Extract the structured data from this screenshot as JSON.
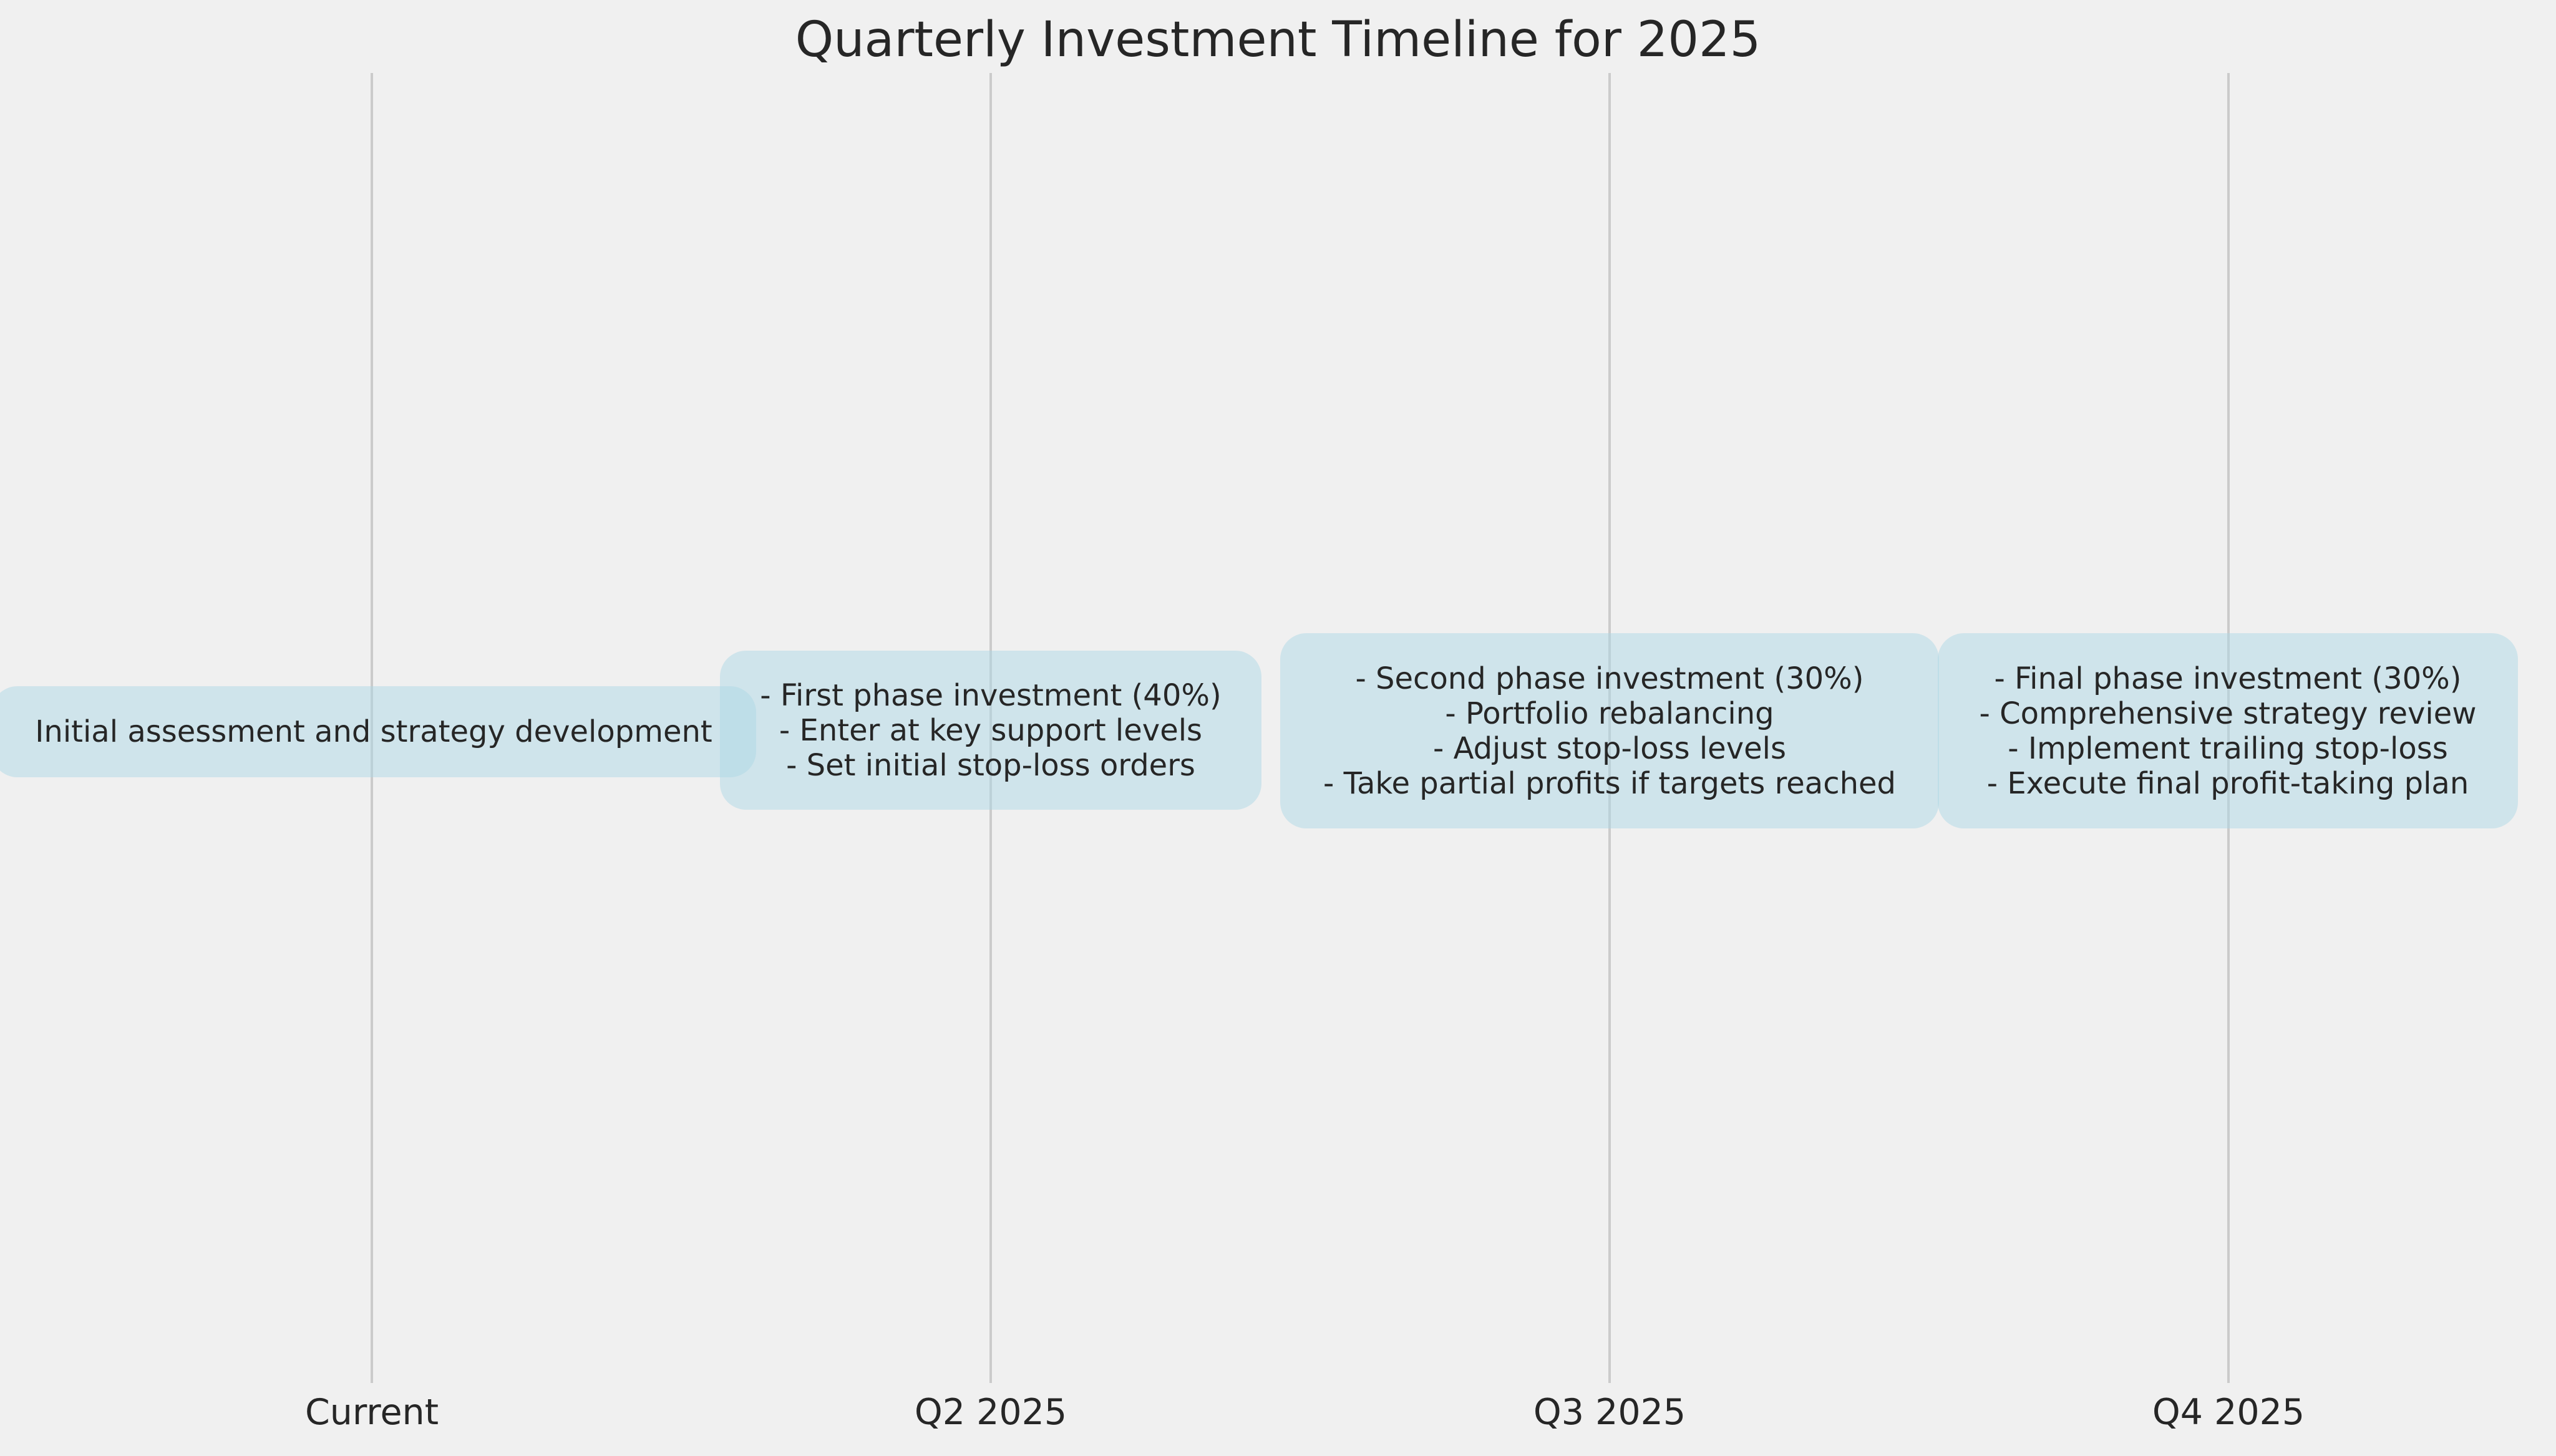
{
  "title": "Quarterly Investment Timeline for 2025",
  "colors": {
    "background": "#f0f0f0",
    "box_fill": "#add8e6",
    "grid_line": "#cbcbcb",
    "text": "#262626"
  },
  "milestones": [
    {
      "label": "Current",
      "lines": [
        "Initial assessment and strategy development"
      ]
    },
    {
      "label": "Q2 2025",
      "lines": [
        "- First phase investment (40%)",
        "- Enter at key support levels",
        "- Set initial stop-loss orders"
      ]
    },
    {
      "label": "Q3 2025",
      "lines": [
        "- Second phase investment (30%)",
        "- Portfolio rebalancing",
        "- Adjust stop-loss levels",
        "- Take partial profits if targets reached"
      ]
    },
    {
      "label": "Q4 2025",
      "lines": [
        "- Final phase investment (30%)",
        "- Comprehensive strategy review",
        "- Implement trailing stop-loss",
        "- Execute final profit-taking plan"
      ]
    }
  ]
}
